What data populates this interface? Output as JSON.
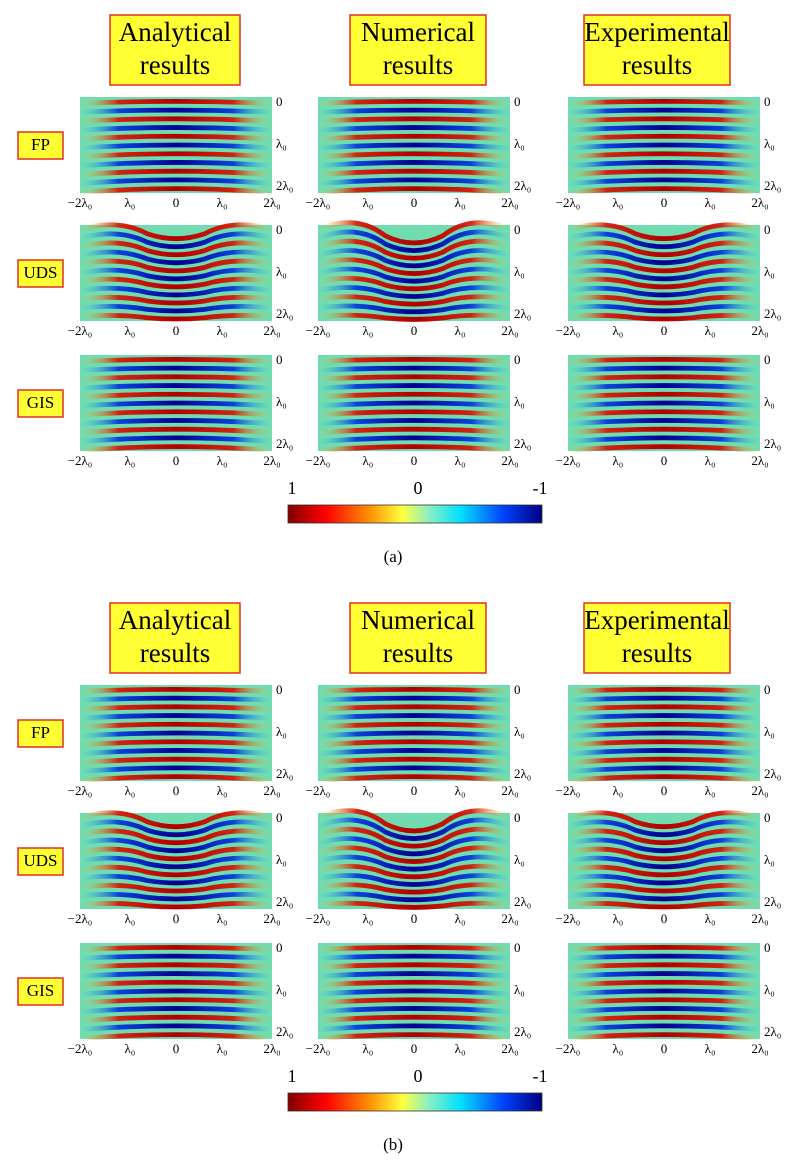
{
  "panels": [
    {
      "columns": [
        [
          "Analytical",
          "results"
        ],
        [
          "Numerical",
          "results"
        ],
        [
          "Experimental",
          "results"
        ]
      ],
      "rows": [
        {
          "label": "FP",
          "plots": [
            {
              "x_ticks": [
                "−2λ₀",
                "λ₀",
                "0",
                "λ₀",
                "2λ₀"
              ],
              "y_ticks": [
                "0",
                "λ₀",
                "2λ₀"
              ]
            },
            {
              "x_ticks": [
                "−2λ₀",
                "λ₀",
                "0",
                "λ₀",
                "2λ₀"
              ],
              "y_ticks": [
                "0",
                "λ₀",
                "2λ₀"
              ]
            },
            {
              "x_ticks": [
                "−2λ₀",
                "λ₀",
                "0",
                "λ₀",
                "2λ₀"
              ],
              "y_ticks": [
                "0",
                "λ₀",
                "2λ₀"
              ]
            }
          ]
        },
        {
          "label": "UDS",
          "plots": [
            {
              "x_ticks": [
                "−2λ₀",
                "λ₀",
                "0",
                "λ₀",
                "2λ₀"
              ],
              "y_ticks": [
                "0",
                "λ₀",
                "2λ₀"
              ]
            },
            {
              "x_ticks": [
                "−2λ₀",
                "λ₀",
                "0",
                "λ₀",
                "2λ₀"
              ],
              "y_ticks": [
                "0",
                "λ₀",
                "2λ₀"
              ]
            },
            {
              "x_ticks": [
                "−2λ₀",
                "λ₀",
                "0",
                "λ₀",
                "2λ₀"
              ],
              "y_ticks": [
                "0",
                "λ₀",
                "2λ₀"
              ]
            }
          ]
        },
        {
          "label": "GIS",
          "plots": [
            {
              "x_ticks": [
                "−2λ₀",
                "λ₀",
                "0",
                "λ₀",
                "2λ₀"
              ],
              "y_ticks": [
                "0",
                "λ₀",
                "2λ₀"
              ]
            },
            {
              "x_ticks": [
                "−2λ₀",
                "λ₀",
                "0",
                "λ₀",
                "2λ₀"
              ],
              "y_ticks": [
                "0",
                "λ₀",
                "2λ₀"
              ]
            },
            {
              "x_ticks": [
                "−2λ₀",
                "λ₀",
                "0",
                "λ₀",
                "2λ₀"
              ],
              "y_ticks": [
                "0",
                "λ₀",
                "2λ₀"
              ]
            }
          ]
        }
      ],
      "colorbar": {
        "labels": [
          "1",
          "0",
          "-1"
        ]
      },
      "caption": "(a)"
    },
    {
      "columns": [
        [
          "Analytical",
          "results"
        ],
        [
          "Numerical",
          "results"
        ],
        [
          "Experimental",
          "results"
        ]
      ],
      "rows": [
        {
          "label": "FP",
          "plots": [
            {
              "x_ticks": [
                "−2λ₀",
                "λ₀",
                "0",
                "λ₀",
                "2λ₀"
              ],
              "y_ticks": [
                "0",
                "λ₀",
                "2λ₀"
              ]
            },
            {
              "x_ticks": [
                "−2λ₀",
                "λ₀",
                "0",
                "λ₀",
                "2λ₀"
              ],
              "y_ticks": [
                "0",
                "λ₀",
                "2λ₀"
              ]
            },
            {
              "x_ticks": [
                "−2λ₀",
                "λ₀",
                "0",
                "λ₀",
                "2λ₀"
              ],
              "y_ticks": [
                "0",
                "λ₀",
                "2λ₀"
              ]
            }
          ]
        },
        {
          "label": "UDS",
          "plots": [
            {
              "x_ticks": [
                "−2λ₀",
                "λ₀",
                "0",
                "λ₀",
                "2λ₀"
              ],
              "y_ticks": [
                "0",
                "λ₀",
                "2λ₀"
              ]
            },
            {
              "x_ticks": [
                "−2λ₀",
                "λ₀",
                "0",
                "λ₀",
                "2λ₀"
              ],
              "y_ticks": [
                "0",
                "λ₀",
                "2λ₀"
              ]
            },
            {
              "x_ticks": [
                "−2λ₀",
                "λ₀",
                "0",
                "λ₀",
                "2λ₀"
              ],
              "y_ticks": [
                "0",
                "λ₀",
                "2λ₀"
              ]
            }
          ]
        },
        {
          "label": "GIS",
          "plots": [
            {
              "x_ticks": [
                "−2λ₀",
                "λ₀",
                "0",
                "λ₀",
                "2λ₀"
              ],
              "y_ticks": [
                "0",
                "λ₀",
                "2λ₀"
              ]
            },
            {
              "x_ticks": [
                "−2λ₀",
                "λ₀",
                "0",
                "λ₀",
                "2λ₀"
              ],
              "y_ticks": [
                "0",
                "λ₀",
                "2λ₀"
              ]
            },
            {
              "x_ticks": [
                "−2λ₀",
                "λ₀",
                "0",
                "λ₀",
                "2λ₀"
              ],
              "y_ticks": [
                "0",
                "λ₀",
                "2λ₀"
              ]
            }
          ]
        }
      ],
      "colorbar": {
        "labels": [
          "1",
          "0",
          "-1"
        ]
      },
      "caption": "(b)"
    }
  ]
}
